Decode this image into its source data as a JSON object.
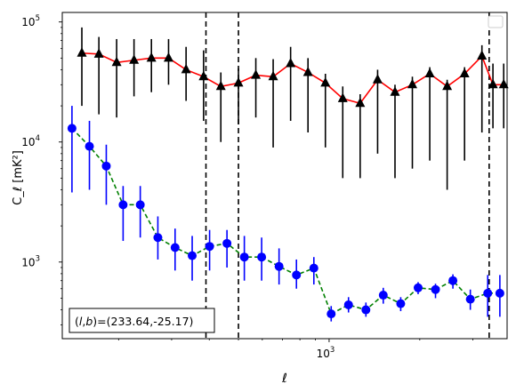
{
  "chart_data": {
    "type": "scatter",
    "title": "",
    "xlabel": "ℓ",
    "ylabel": "C_ℓ  [mK²]",
    "xscale": "log",
    "yscale": "log",
    "xlim": [
      130,
      3900
    ],
    "ylim": [
      230,
      120000
    ],
    "x_ticks": [
      {
        "value": 1000,
        "base": "10",
        "exp": "3"
      }
    ],
    "y_ticks": [
      {
        "value": 1000,
        "base": "10",
        "exp": "3"
      },
      {
        "value": 10000,
        "base": "10",
        "exp": "4"
      },
      {
        "value": 100000,
        "base": "10",
        "exp": "5"
      }
    ],
    "grid": false,
    "legend": {
      "placement": "top-right",
      "entries": []
    },
    "annotation": {
      "prefix": "(",
      "l": "l",
      "comma": ",",
      "b": "b",
      "suffix": ")=(233.64,-25.17)"
    },
    "vlines": [
      390,
      500,
      3400
    ],
    "series": [
      {
        "marker": "triangle",
        "marker_color": "#000000",
        "line_color": "#ff0000",
        "line_style": "solid",
        "x": [
          151,
          172,
          197,
          225,
          257,
          293,
          335,
          383,
          437,
          500,
          571,
          652,
          745,
          851,
          972,
          1110,
          1268,
          1449,
          1655,
          1890,
          2159,
          2466,
          2817,
          3217,
          3500,
          3800
        ],
        "y": [
          55000,
          54000,
          46000,
          48000,
          50000,
          50000,
          40000,
          35000,
          29000,
          31000,
          36000,
          35000,
          45000,
          38000,
          31000,
          23000,
          21000,
          33000,
          26000,
          30000,
          37000,
          29000,
          37000,
          52000,
          30000,
          30000
        ],
        "err_low": [
          20000,
          17000,
          16000,
          24000,
          26000,
          30000,
          22000,
          15000,
          10000,
          14000,
          16000,
          9000,
          15000,
          12000,
          9000,
          5000,
          5000,
          8000,
          5000,
          6000,
          7000,
          4000,
          7000,
          12000,
          13000,
          13000
        ],
        "err_high": [
          90000,
          75000,
          72000,
          72000,
          72000,
          72000,
          62000,
          58000,
          38000,
          41000,
          50000,
          49000,
          62000,
          50000,
          37000,
          29000,
          25000,
          40000,
          30000,
          35000,
          42000,
          33000,
          42000,
          64000,
          45000,
          45000
        ]
      },
      {
        "marker": "circle",
        "marker_color": "#0000ff",
        "line_color": "#008000",
        "line_style": "dashed",
        "x": [
          140,
          160,
          182,
          207,
          236,
          270,
          308,
          351,
          401,
          458,
          523,
          597,
          682,
          779,
          890,
          1016,
          1160,
          1325,
          1513,
          1729,
          1975,
          2256,
          2577,
          2944,
          3363,
          3690
        ],
        "y": [
          13000,
          9200,
          6300,
          3000,
          3000,
          1600,
          1320,
          1130,
          1350,
          1430,
          1100,
          1100,
          920,
          780,
          890,
          370,
          440,
          400,
          530,
          450,
          610,
          590,
          700,
          490,
          550,
          550
        ],
        "err_low": [
          3800,
          4000,
          3000,
          1500,
          1600,
          1050,
          850,
          700,
          850,
          900,
          700,
          700,
          650,
          600,
          650,
          320,
          380,
          350,
          450,
          390,
          540,
          500,
          600,
          400,
          350,
          350
        ],
        "err_high": [
          20000,
          15000,
          9500,
          4300,
          4300,
          2400,
          1900,
          1650,
          1850,
          1850,
          1650,
          1600,
          1300,
          1050,
          1100,
          430,
          510,
          460,
          610,
          510,
          680,
          660,
          790,
          590,
          780,
          780
        ]
      }
    ]
  }
}
